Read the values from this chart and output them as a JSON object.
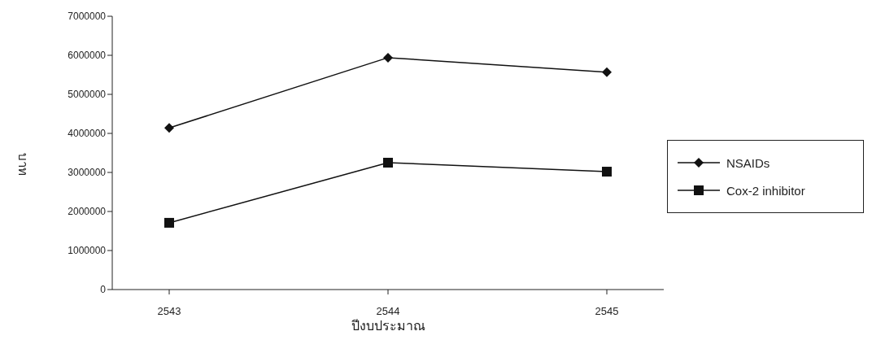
{
  "chart_data": {
    "type": "line",
    "xlabel": "ปีงบประมาณ",
    "ylabel": "บาท",
    "categories": [
      "2543",
      "2544",
      "2545"
    ],
    "series": [
      {
        "name": "NSAIDs",
        "color": "#111111",
        "marker": "diamond",
        "values": [
          4140000,
          5940000,
          5570000
        ]
      },
      {
        "name": "Cox-2  inhibitor",
        "color": "#111111",
        "marker": "square",
        "values": [
          1710000,
          3250000,
          3020000
        ]
      }
    ],
    "ylim": [
      0,
      7000000
    ],
    "yticks": [
      0,
      1000000,
      2000000,
      3000000,
      4000000,
      5000000,
      6000000,
      7000000
    ],
    "grid": false,
    "legend": "right",
    "line_style": "solid"
  }
}
